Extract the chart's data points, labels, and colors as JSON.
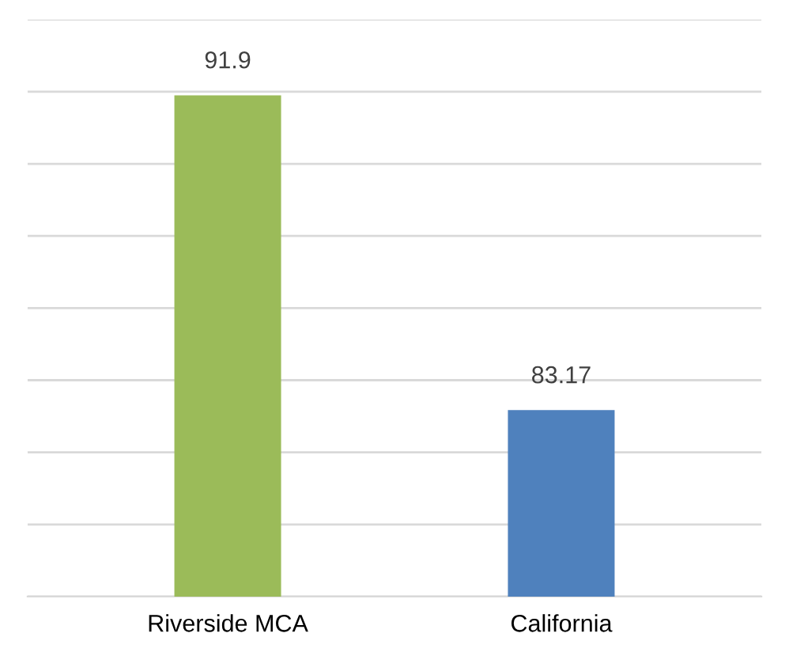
{
  "chart_data": {
    "type": "bar",
    "categories": [
      "Riverside MCA",
      "California"
    ],
    "values": [
      91.9,
      83.17
    ],
    "colors": [
      "#9bbb59",
      "#4f81bd"
    ],
    "ylim": [
      78,
      94
    ],
    "yticks": [
      {
        "value": 78,
        "label": null
      },
      {
        "value": 80,
        "label": null
      },
      {
        "value": 82,
        "label": null
      },
      {
        "value": 84,
        "label": null
      },
      {
        "value": 86,
        "label": null
      },
      {
        "value": 88,
        "label": null
      },
      {
        "value": 90,
        "label": null
      },
      {
        "value": 92,
        "label": null
      },
      {
        "value": 94,
        "label": null
      }
    ],
    "tick_labels": "x",
    "grid": "y",
    "data_labels": true
  }
}
